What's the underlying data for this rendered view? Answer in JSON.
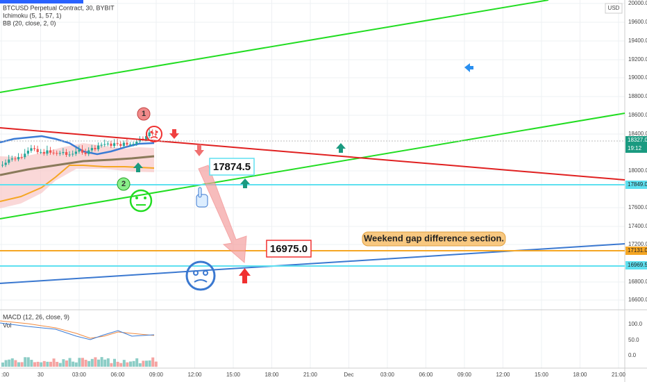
{
  "header": {
    "symbol": "BTCUSD Perpetual Contract, 30, BYBIT",
    "indicators": [
      "Ichimoku (5, 1, 57, 1)",
      "BB (20, close, 2, 0)"
    ],
    "currency": "USD"
  },
  "price_axis": {
    "labels": [
      "20000.0",
      "19600.0",
      "19400.0",
      "19200.0",
      "19000.0",
      "18800.0",
      "18600.0",
      "18400.0",
      "18000.0",
      "17600.0",
      "17400.0",
      "17200.0",
      "16800.0",
      "16600.0"
    ],
    "badges": [
      "18327.0",
      "19:12",
      "17849.0",
      "17131.0",
      "16969.5"
    ]
  },
  "annotations": {
    "marker_1": "1",
    "marker_2": "2",
    "price_1": "17874.5",
    "price_2": "16975.0",
    "note": "Weekend gap difference section."
  },
  "lower_pane": {
    "macd": "MACD (12, 26, close, 9)",
    "vol": "Vol",
    "axis": [
      "100.0",
      "50.0",
      "0.0"
    ]
  },
  "time_axis": [
    ":00",
    "30",
    "03:00",
    "06:00",
    "09:00",
    "12:00",
    "15:00",
    "18:00",
    "21:00",
    "Dec",
    "03:00",
    "06:00",
    "09:00",
    "12:00",
    "15:00",
    "18:00",
    "21:00"
  ]
}
